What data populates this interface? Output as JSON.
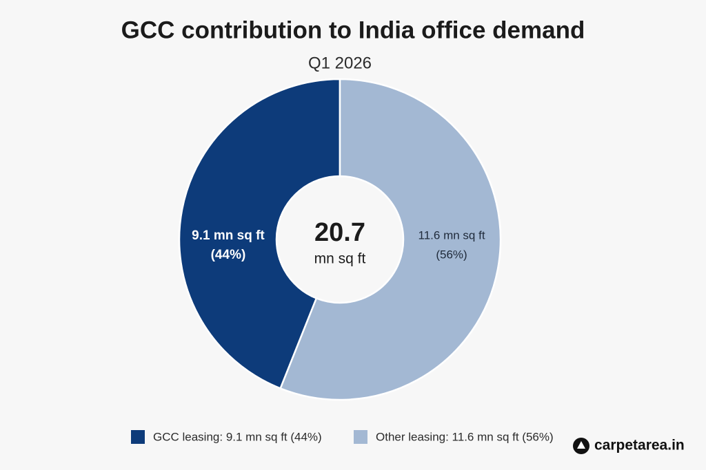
{
  "chart_data": {
    "type": "pie",
    "donut": true,
    "title": "GCC contribution to India office demand",
    "subtitle": "Q1 2026",
    "categories": [
      "GCC leasing: 9.1 mn sq ft (44%)",
      "Other leasing: 11.6 mn sq ft (56%)"
    ],
    "values": [
      9.1,
      11.6
    ],
    "value_labels": [
      "9.1 mn sq ft",
      "11.6 mn sq ft"
    ],
    "percent_labels": [
      "(44%)",
      "(56%)"
    ],
    "colors": [
      "#0d3b7a",
      "#a3b8d3"
    ],
    "label_colors": [
      "#ffffff",
      "#1f2a3a"
    ],
    "center_value": "20.7",
    "center_unit": "mn sq ft"
  },
  "watermark": "carpetarea.in"
}
